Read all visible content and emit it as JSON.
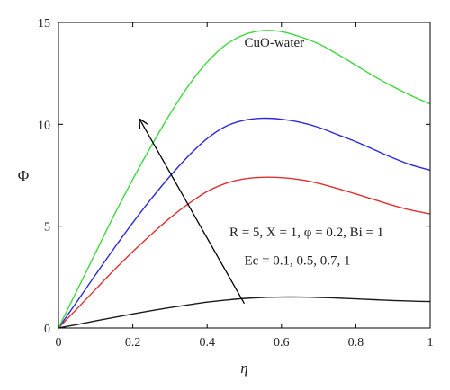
{
  "chart_data": {
    "type": "line",
    "title": "",
    "xlabel": "η",
    "ylabel": "Φ",
    "xlim": [
      0,
      1
    ],
    "ylim": [
      0,
      15
    ],
    "grid": false,
    "x_ticks": [
      0,
      0.2,
      0.4,
      0.6,
      0.8,
      1
    ],
    "x_tick_labels": [
      "0",
      "0.2",
      "0.4",
      "0.6",
      "0.8",
      "1"
    ],
    "y_ticks": [
      0,
      5,
      10,
      15
    ],
    "y_tick_labels": [
      "0",
      "5",
      "10",
      "15"
    ],
    "x": [
      0,
      0.05,
      0.1,
      0.15,
      0.2,
      0.25,
      0.3,
      0.35,
      0.4,
      0.45,
      0.5,
      0.55,
      0.6,
      0.65,
      0.7,
      0.75,
      0.8,
      0.85,
      0.9,
      0.95,
      1.0
    ],
    "series": [
      {
        "ec": 0.1,
        "color": "#1a1a1a",
        "values": [
          0,
          0.17,
          0.35,
          0.52,
          0.69,
          0.85,
          1.0,
          1.14,
          1.27,
          1.37,
          1.45,
          1.5,
          1.52,
          1.52,
          1.5,
          1.47,
          1.43,
          1.39,
          1.35,
          1.32,
          1.3
        ]
      },
      {
        "ec": 0.5,
        "color": "#e03030",
        "values": [
          0,
          0.95,
          1.9,
          2.85,
          3.75,
          4.6,
          5.4,
          6.1,
          6.7,
          7.1,
          7.32,
          7.4,
          7.38,
          7.28,
          7.1,
          6.85,
          6.58,
          6.3,
          6.02,
          5.78,
          5.6
        ]
      },
      {
        "ec": 0.7,
        "color": "#2a2ad8",
        "values": [
          0,
          1.3,
          2.62,
          3.92,
          5.17,
          6.35,
          7.45,
          8.45,
          9.3,
          9.9,
          10.2,
          10.3,
          10.25,
          10.1,
          9.85,
          9.5,
          9.15,
          8.75,
          8.35,
          8.0,
          7.75
        ]
      },
      {
        "ec": 1,
        "color": "#3cd83c",
        "values": [
          0,
          1.85,
          3.7,
          5.55,
          7.3,
          8.95,
          10.5,
          11.9,
          13.05,
          13.9,
          14.4,
          14.6,
          14.55,
          14.3,
          13.95,
          13.45,
          12.9,
          12.35,
          11.85,
          11.4,
          11.0
        ]
      }
    ],
    "annotations": {
      "fluid_label": "CuO-water",
      "params_line1": "R = 5, X = 1, φ = 0.2, Bi = 1",
      "params_line2": "Ec = 0.1, 0.5, 0.7, 1"
    },
    "arrow": {
      "from": [
        0.5,
        1.2
      ],
      "to": [
        0.22,
        10.2
      ],
      "meaning": "increasing Ec"
    }
  }
}
